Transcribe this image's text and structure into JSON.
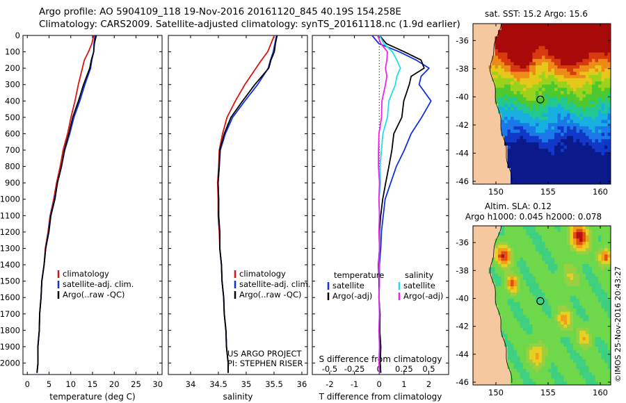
{
  "header": {
    "line1": "Argo profile: AO 5904109_118 19-Nov-2016 20161120_845 40.19S 154.258E",
    "line2": "Climatology: CARS2009. Satellite-adjusted climatology: synTS_20161118.nc (1.9d earlier)"
  },
  "colors": {
    "climatology": "#e01010",
    "satellite": "#1030e0",
    "argo": "#000000",
    "cyan": "#22dde8",
    "magenta": "#ee22ee",
    "land": "#f6c8a0"
  },
  "chart_data": [
    {
      "type": "line",
      "panel": "temperature",
      "xlabel": "temperature (deg C)",
      "xlim": [
        -1,
        31
      ],
      "xticks": [
        "0",
        "5",
        "10",
        "15",
        "20",
        "25",
        "30"
      ],
      "ylim": [
        2070,
        0
      ],
      "yticks": [
        "0",
        "100",
        "200",
        "300",
        "400",
        "500",
        "600",
        "700",
        "800",
        "900",
        "1000",
        "1100",
        "1200",
        "1300",
        "1400",
        "1500",
        "1600",
        "1700",
        "1800",
        "1900",
        "2000"
      ],
      "depth": [
        0,
        50,
        100,
        150,
        200,
        300,
        400,
        500,
        600,
        700,
        800,
        900,
        1000,
        1100,
        1200,
        1300,
        1400,
        1500,
        1600,
        1700,
        1800,
        1900,
        2000,
        2060
      ],
      "series": [
        {
          "name": "climatology",
          "values": [
            15.2,
            14.9,
            14.0,
            13.2,
            12.6,
            11.8,
            10.9,
            10.1,
            9.2,
            8.3,
            7.5,
            6.8,
            6.0,
            5.3,
            4.7,
            4.2,
            3.8,
            3.4,
            3.1,
            2.9,
            2.7,
            2.5,
            2.4,
            2.3
          ]
        },
        {
          "name": "satellite-adj. clim.",
          "values": [
            15.5,
            15.4,
            15.2,
            14.9,
            14.5,
            13.3,
            12.0,
            10.8,
            9.7,
            8.7,
            7.8,
            7.0,
            6.2,
            5.4,
            4.8,
            4.3,
            3.8,
            3.4,
            3.1,
            2.9,
            2.7,
            2.5,
            2.4,
            2.3
          ]
        },
        {
          "name": "Argo(..raw -QC)",
          "values": [
            15.8,
            15.5,
            15.2,
            14.8,
            14.3,
            13.0,
            11.7,
            10.5,
            9.5,
            8.6,
            7.8,
            7.0,
            6.3,
            5.5,
            4.9,
            4.3,
            3.8,
            3.4,
            3.1,
            2.9,
            2.7,
            2.5,
            2.4,
            2.3
          ]
        }
      ],
      "legend": [
        "climatology",
        "satellite-adj. clim.",
        "Argo(..raw -QC)"
      ]
    },
    {
      "type": "line",
      "panel": "salinity",
      "xlabel": "salinity",
      "xlim": [
        33.6,
        36.1
      ],
      "xticks": [
        "34",
        "34.5",
        "35",
        "35.5",
        "36"
      ],
      "ylim": [
        2070,
        0
      ],
      "depth": [
        0,
        50,
        100,
        150,
        200,
        300,
        400,
        500,
        600,
        700,
        800,
        900,
        1000,
        1100,
        1200,
        1300,
        1400,
        1500,
        1600,
        1700,
        1800,
        1900,
        2000,
        2060
      ],
      "series": [
        {
          "name": "climatology",
          "values": [
            35.5,
            35.45,
            35.38,
            35.28,
            35.17,
            34.98,
            34.8,
            34.66,
            34.57,
            34.52,
            34.5,
            34.49,
            34.49,
            34.5,
            34.51,
            34.53,
            34.55,
            34.57,
            34.59,
            34.61,
            34.63,
            34.65,
            34.67,
            34.68
          ]
        },
        {
          "name": "satellite-adj. clim.",
          "values": [
            35.54,
            35.52,
            35.48,
            35.44,
            35.39,
            35.21,
            34.97,
            34.76,
            34.62,
            34.54,
            34.51,
            34.5,
            34.5,
            34.51,
            34.52,
            34.53,
            34.55,
            34.57,
            34.59,
            34.61,
            34.63,
            34.65,
            34.67,
            34.68
          ]
        },
        {
          "name": "Argo(..raw -QC)",
          "values": [
            35.55,
            35.53,
            35.5,
            35.45,
            35.4,
            35.16,
            34.93,
            34.73,
            34.6,
            34.53,
            34.51,
            34.5,
            34.5,
            34.51,
            34.52,
            34.53,
            34.55,
            34.57,
            34.59,
            34.61,
            34.63,
            34.65,
            34.67,
            34.68
          ]
        }
      ],
      "legend": [
        "climatology",
        "satellite-adj. clim.",
        "Argo(..raw -QC)"
      ],
      "annotation": [
        "US ARGO PROJECT",
        "PI: STEPHEN RISER"
      ]
    },
    {
      "type": "line",
      "panel": "difference",
      "xlabel": "T difference from climatology",
      "xlabel2": "S difference from climatology",
      "xlim": [
        -2.7,
        2.8
      ],
      "xticks": [
        "-2",
        "-1",
        "0",
        "1",
        "2"
      ],
      "xticks2": [
        "-0.5",
        "-0.25",
        "0",
        "0.25",
        "0.5"
      ],
      "xticks2_values": [
        -0.5,
        -0.25,
        0,
        0.25,
        0.5
      ],
      "depth": [
        0,
        50,
        100,
        150,
        200,
        250,
        300,
        400,
        500,
        600,
        700,
        800,
        900,
        1000,
        1100,
        1200,
        1300,
        1400,
        1500,
        1600,
        1700,
        1800,
        1900,
        2000,
        2060
      ],
      "series": [
        {
          "name": "temperature satellite",
          "group": "temperature",
          "values": [
            -0.3,
            0.0,
            0.8,
            1.5,
            2.0,
            1.7,
            1.6,
            2.1,
            1.7,
            1.3,
            1.0,
            0.7,
            0.45,
            0.25,
            0.15,
            0.1,
            0.05,
            0.02,
            0.0,
            0.0,
            0.02,
            0.03,
            0.05,
            0.05,
            0.05
          ]
        },
        {
          "name": "temperature Argo(-adj)",
          "group": "temperature",
          "values": [
            0.0,
            0.3,
            1.0,
            1.7,
            1.8,
            1.3,
            1.2,
            1.0,
            0.9,
            0.6,
            0.5,
            0.4,
            0.25,
            0.15,
            0.05,
            0.02,
            0.0,
            -0.02,
            -0.02,
            0.0,
            0.02,
            0.03,
            0.05,
            0.05,
            0.05
          ]
        },
        {
          "name": "salinity satellite",
          "group": "salinity",
          "values": [
            0.0,
            0.05,
            0.13,
            0.18,
            0.21,
            0.18,
            0.16,
            0.1,
            0.08,
            0.04,
            0.02,
            0.01,
            0.01,
            0.0,
            0.0,
            0.0,
            0.0,
            0.0,
            0.0,
            0.0,
            0.0,
            0.0,
            0.0,
            0.0,
            0.0
          ]
        },
        {
          "name": "salinity Argo(-adj)",
          "group": "salinity",
          "values": [
            -0.02,
            0.02,
            0.08,
            0.08,
            0.06,
            0.08,
            0.06,
            0.03,
            0.02,
            0.0,
            -0.01,
            -0.005,
            0.0,
            0.0,
            0.0,
            0.0,
            0.0,
            0.0,
            0.0,
            0.0,
            0.0,
            0.0,
            0.0,
            0.0,
            0.0
          ]
        }
      ],
      "legend": {
        "temperature_header": "temperature",
        "salinity_header": "salinity",
        "satellite": "satellite",
        "argo": "Argo(-adj)"
      }
    }
  ],
  "maps": [
    {
      "name": "sst",
      "title": "sat. SST: 15.2 Argo: 15.6",
      "lon_ticks": [
        "150",
        "155",
        "160"
      ],
      "lat_ticks": [
        "-36",
        "-38",
        "-40",
        "-42",
        "-44",
        "-46"
      ],
      "marker": {
        "lon": 154.258,
        "lat": -40.19
      }
    },
    {
      "name": "sla",
      "title1": "Altim. SLA: 0.12",
      "title2": "Argo h1000: 0.045 h2000: 0.078",
      "lon_ticks": [
        "150",
        "155",
        "160"
      ],
      "lat_ticks": [
        "-36",
        "-38",
        "-40",
        "-42",
        "-44",
        "-46"
      ],
      "marker": {
        "lon": 154.258,
        "lat": -40.19
      }
    }
  ],
  "credit": "©IMOS 25-Nov-2016 20:43:27"
}
